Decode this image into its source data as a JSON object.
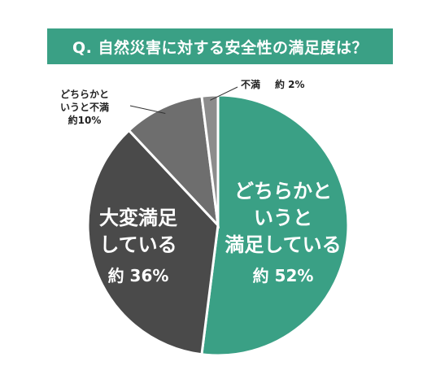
{
  "chart_data": {
    "type": "pie",
    "title": "Q. 自然災害に対する安全性の満足度は？",
    "slices": [
      {
        "label_lines": [
          "どちらかと",
          "いうと",
          "満足している"
        ],
        "value_text": "約 52%",
        "value": 52,
        "color": "#3aa085"
      },
      {
        "label_lines": [
          "大変満足",
          "している"
        ],
        "value_text": "約 36%",
        "value": 36,
        "color": "#4a4a4a"
      },
      {
        "label_lines": [
          "どちらかと",
          "いうと不満"
        ],
        "value_text": "約10%",
        "value": 10,
        "color": "#6e6e6e"
      },
      {
        "label_lines": [
          "不満"
        ],
        "value_text": "約 2%",
        "value": 2,
        "color": "#8c8c8c"
      }
    ]
  }
}
